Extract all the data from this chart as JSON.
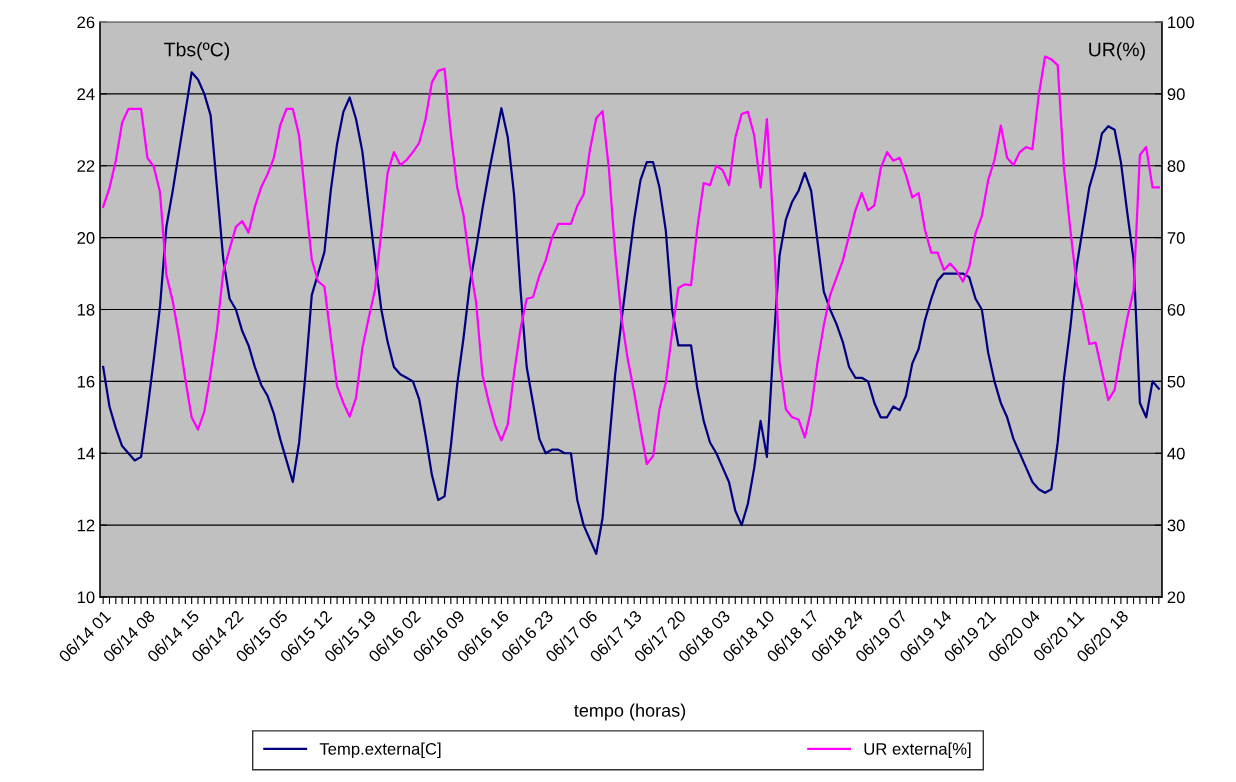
{
  "chart_data": {
    "type": "line",
    "xlabel": "tempo (horas)",
    "ylabel": "Tbs(ºC)",
    "y2label": "UR(%)",
    "categories": [
      "06/14 01",
      null,
      null,
      null,
      null,
      null,
      null,
      "06/14 08",
      null,
      null,
      null,
      null,
      null,
      null,
      "06/14 15",
      null,
      null,
      null,
      null,
      null,
      null,
      "06/14 22",
      null,
      null,
      null,
      null,
      null,
      null,
      "06/15 05",
      null,
      null,
      null,
      null,
      null,
      null,
      "06/15 12",
      null,
      null,
      null,
      null,
      null,
      null,
      "06/15 19",
      null,
      null,
      null,
      null,
      null,
      null,
      "06/16 02",
      null,
      null,
      null,
      null,
      null,
      null,
      "06/16 09",
      null,
      null,
      null,
      null,
      null,
      null,
      "06/16 16",
      null,
      null,
      null,
      null,
      null,
      null,
      "06/16 23",
      null,
      null,
      null,
      null,
      null,
      null,
      "06/17 06",
      null,
      null,
      null,
      null,
      null,
      null,
      "06/17 13",
      null,
      null,
      null,
      null,
      null,
      null,
      "06/17 20",
      null,
      null,
      null,
      null,
      null,
      null,
      "06/18 03",
      null,
      null,
      null,
      null,
      null,
      null,
      "06/18 10",
      null,
      null,
      null,
      null,
      null,
      null,
      "06/18 17",
      null,
      null,
      null,
      null,
      null,
      null,
      "06/18 24",
      null,
      null,
      null,
      null,
      null,
      null,
      "06/19 07",
      null,
      null,
      null,
      null,
      null,
      null,
      "06/19 14",
      null,
      null,
      null,
      null,
      null,
      null,
      "06/19 21",
      null,
      null,
      null,
      null,
      null,
      null,
      "06/20 04",
      null,
      null,
      null,
      null,
      null,
      null,
      "06/20 11",
      null,
      null,
      null,
      null,
      null,
      null,
      "06/20 18",
      null,
      null,
      null,
      null,
      null,
      null
    ],
    "series": [
      {
        "name": "Temp.externa[C]",
        "color": "#000080",
        "values": [
          16.4,
          15.3,
          14.7,
          14.2,
          14.0,
          13.8,
          13.9,
          15.2,
          16.6,
          18.1,
          20.3,
          21.3,
          22.4,
          23.5,
          24.6,
          24.4,
          24.0,
          23.4,
          21.4,
          19.4,
          18.3,
          18.0,
          17.4,
          17.0,
          16.4,
          15.9,
          15.6,
          15.1,
          14.4,
          13.8,
          13.2,
          14.3,
          16.2,
          18.4,
          19.0,
          19.6,
          21.3,
          22.6,
          23.5,
          23.9,
          23.3,
          22.4,
          20.9,
          19.4,
          18.0,
          17.1,
          16.4,
          16.2,
          16.1,
          16.0,
          15.5,
          14.5,
          13.4,
          12.7,
          12.8,
          14.2,
          15.9,
          17.2,
          18.7,
          19.7,
          20.8,
          21.8,
          22.7,
          23.6,
          22.8,
          21.2,
          18.6,
          16.4,
          15.4,
          14.4,
          14.0,
          14.1,
          14.1,
          14.0,
          14.0,
          12.7,
          12.0,
          11.6,
          11.2,
          12.2,
          14.2,
          16.2,
          17.7,
          19.1,
          20.5,
          21.6,
          22.1,
          22.1,
          21.4,
          20.2,
          18.0,
          17.0,
          17.0,
          17.0,
          15.8,
          14.9,
          14.3,
          14.0,
          13.6,
          13.2,
          12.4,
          12.0,
          12.6,
          13.6,
          14.9,
          13.9,
          16.9,
          19.5,
          20.5,
          21.0,
          21.3,
          21.8,
          21.3,
          19.9,
          18.5,
          18.0,
          17.6,
          17.1,
          16.4,
          16.1,
          16.1,
          16.0,
          15.4,
          15.0,
          15.0,
          15.3,
          15.2,
          15.6,
          16.5,
          16.9,
          17.7,
          18.3,
          18.8,
          19.0,
          19.0,
          19.0,
          19.0,
          18.9,
          18.3,
          18.0,
          16.8,
          16.0,
          15.4,
          15.0,
          14.4,
          14.0,
          13.6,
          13.2,
          13.0,
          12.9,
          13.0,
          14.3,
          16.1,
          17.5,
          19.2,
          20.3,
          21.4,
          22.0,
          22.9,
          23.1,
          23.0,
          22.1,
          20.7,
          19.4,
          15.4,
          15.0,
          16.0,
          15.8
        ]
      },
      {
        "name": "UR externa[%]",
        "color": "#ff00ff",
        "axis": "y2",
        "values": [
          74.3,
          76.9,
          80.7,
          86.0,
          87.9,
          87.9,
          87.9,
          81.1,
          79.9,
          76.3,
          64.8,
          61.2,
          56.2,
          50.3,
          45.0,
          43.3,
          45.8,
          51.1,
          57.2,
          65.2,
          68.4,
          71.5,
          72.3,
          70.7,
          74.3,
          77.0,
          78.8,
          81.1,
          85.6,
          87.9,
          87.9,
          84.2,
          75.4,
          67.0,
          63.9,
          63.2,
          56.2,
          49.3,
          47.0,
          45.1,
          47.7,
          54.6,
          58.8,
          62.7,
          70.8,
          79.0,
          81.9,
          80.1,
          80.8,
          81.9,
          83.2,
          86.5,
          91.6,
          93.2,
          93.5,
          84.5,
          77.0,
          73.2,
          66.3,
          61.0,
          50.9,
          47.1,
          43.9,
          41.8,
          44.0,
          51.1,
          57.2,
          61.5,
          61.7,
          64.7,
          66.8,
          70.0,
          71.9,
          71.9,
          71.9,
          74.4,
          76.0,
          82.2,
          86.6,
          87.6,
          79.6,
          67.9,
          58.8,
          53.0,
          48.5,
          43.4,
          38.5,
          39.6,
          46.1,
          49.8,
          56.7,
          63.0,
          63.5,
          63.4,
          71.4,
          77.6,
          77.3,
          80.0,
          79.4,
          77.3,
          83.9,
          87.2,
          87.5,
          84.2,
          77.0,
          86.5,
          72.2,
          52.7,
          46.1,
          45.0,
          44.7,
          42.2,
          46.1,
          52.6,
          57.8,
          62.0,
          64.4,
          66.8,
          70.3,
          73.8,
          76.2,
          73.8,
          74.5,
          79.6,
          81.9,
          80.7,
          81.1,
          78.7,
          75.6,
          76.2,
          71.1,
          67.9,
          67.9,
          65.5,
          66.4,
          65.4,
          63.9,
          65.9,
          70.6,
          73.0,
          78.0,
          80.8,
          85.6,
          81.1,
          80.1,
          81.9,
          82.6,
          82.3,
          89.8,
          95.2,
          94.8,
          94.0,
          79.6,
          71.1,
          63.6,
          59.9,
          55.2,
          55.4,
          51.4,
          47.4,
          48.8,
          54.1,
          58.8,
          62.6,
          81.5,
          82.6,
          77.0,
          77.0
        ]
      }
    ],
    "ylim": [
      10,
      26
    ],
    "yticks": [
      10,
      12,
      14,
      16,
      18,
      20,
      22,
      24,
      26
    ],
    "y2lim": [
      20,
      100
    ],
    "y2ticks": [
      20,
      30,
      40,
      50,
      60,
      70,
      80,
      90,
      100
    ],
    "grid": "y",
    "legend": "bottom",
    "marker": "none",
    "line_style": "solid"
  }
}
